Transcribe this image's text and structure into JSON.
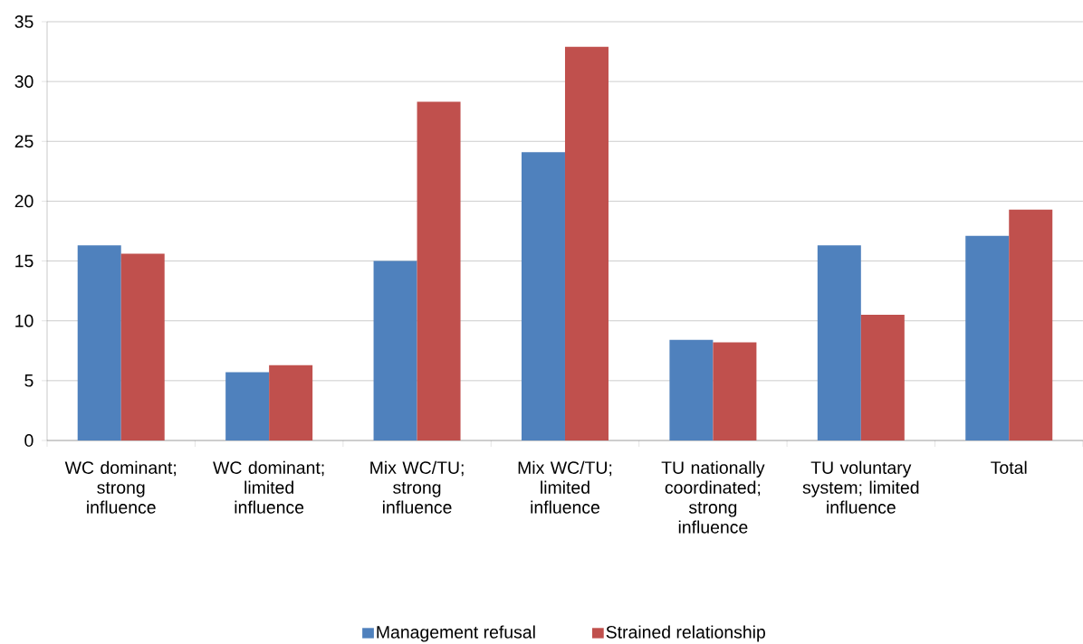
{
  "chart_data": {
    "type": "bar",
    "categories": [
      "WC dominant; strong influence",
      "WC dominant; limited influence",
      "Mix WC/TU; strong influence",
      "Mix WC/TU; limited influence",
      "TU nationally coordinated; strong influence",
      "TU voluntary system; limited influence",
      "Total"
    ],
    "series": [
      {
        "name": "Management refusal",
        "color": "#4f81bd",
        "values": [
          16.3,
          5.7,
          15.0,
          24.1,
          8.4,
          16.3,
          17.1
        ]
      },
      {
        "name": "Strained relationship",
        "color": "#c0504d",
        "values": [
          15.6,
          6.3,
          28.3,
          32.9,
          8.2,
          10.5,
          19.3
        ]
      }
    ],
    "ylim": [
      0,
      35
    ],
    "yticks": [
      0,
      5,
      10,
      15,
      20,
      25,
      30,
      35
    ],
    "grid": "y",
    "legend": "bottom"
  }
}
